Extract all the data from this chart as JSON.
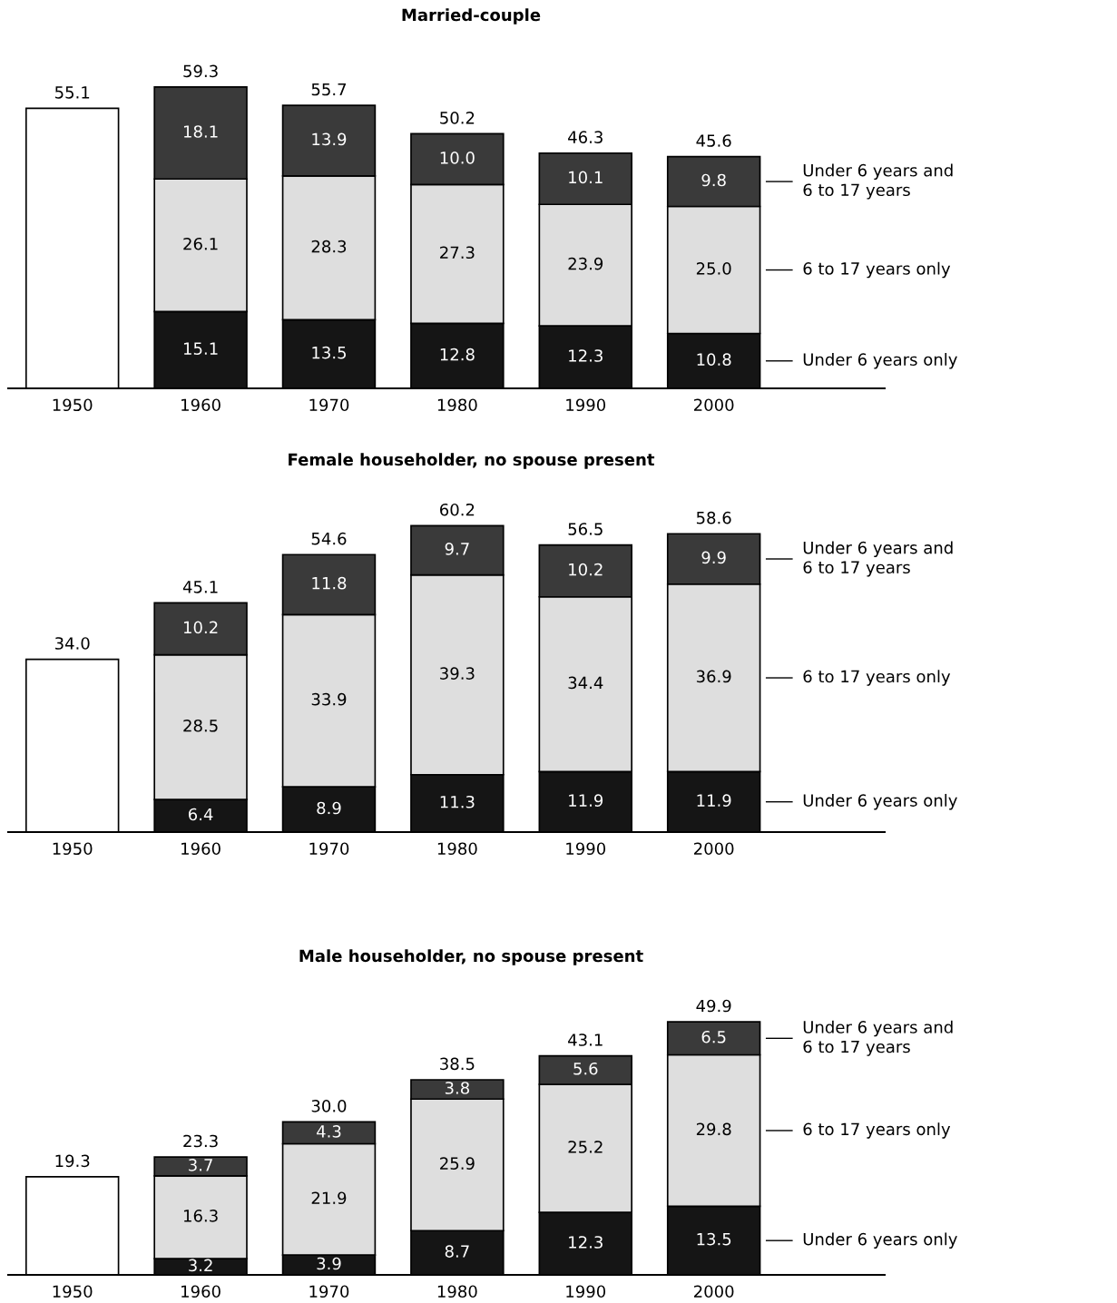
{
  "chart_data": [
    {
      "type": "bar",
      "title": "Married-couple",
      "stacked": true,
      "legend": "right",
      "data_labels": true,
      "categories": [
        "1950",
        "1960",
        "1970",
        "1980",
        "1990",
        "2000"
      ],
      "series": [
        {
          "color": "#ffffff",
          "values": [
            55.1,
            null,
            null,
            null,
            null,
            null
          ],
          "value_labels": [
            null,
            null,
            null,
            null,
            null,
            null
          ]
        },
        {
          "name": "Under 6 years only",
          "color": "#151515",
          "values": [
            null,
            15.1,
            13.5,
            12.8,
            12.3,
            10.8
          ]
        },
        {
          "name": "6 to 17 years only",
          "color": "#dedede",
          "values": [
            null,
            26.1,
            28.3,
            27.3,
            23.9,
            25.0
          ],
          "value_labels": [
            null,
            "26.1",
            "28.3",
            "27.3",
            "23.9",
            "25.0"
          ]
        },
        {
          "name": "Under 6 years and\n6 to 17 years",
          "color": "#3a3a3a",
          "values": [
            null,
            18.1,
            13.9,
            10.0,
            10.1,
            9.8
          ],
          "value_labels": [
            null,
            "18.1",
            "13.9",
            "10.0",
            "10.1",
            "9.8"
          ]
        }
      ],
      "totals": [
        "55.1",
        "59.3",
        "55.7",
        "50.2",
        "46.3",
        "45.6"
      ]
    },
    {
      "type": "bar",
      "title": "Female householder, no spouse present",
      "stacked": true,
      "legend": "right",
      "data_labels": true,
      "categories": [
        "1950",
        "1960",
        "1970",
        "1980",
        "1990",
        "2000"
      ],
      "series": [
        {
          "color": "#ffffff",
          "values": [
            34.0,
            null,
            null,
            null,
            null,
            null
          ],
          "value_labels": [
            null,
            null,
            null,
            null,
            null,
            null
          ]
        },
        {
          "name": "Under 6 years only",
          "color": "#151515",
          "values": [
            null,
            6.4,
            8.9,
            11.3,
            11.9,
            11.9
          ]
        },
        {
          "name": "6 to 17 years only",
          "color": "#dedede",
          "values": [
            null,
            28.5,
            33.9,
            39.3,
            34.4,
            36.9
          ]
        },
        {
          "name": "Under 6 years and\n6 to 17 years",
          "color": "#3a3a3a",
          "values": [
            null,
            10.2,
            11.8,
            9.7,
            10.2,
            9.9
          ]
        }
      ],
      "totals": [
        "34.0",
        "45.1",
        "54.6",
        "60.2",
        "56.5",
        "58.6"
      ]
    },
    {
      "type": "bar",
      "title": "Male householder, no spouse present",
      "stacked": true,
      "legend": "right",
      "data_labels": true,
      "categories": [
        "1950",
        "1960",
        "1970",
        "1980",
        "1990",
        "2000"
      ],
      "series": [
        {
          "color": "#ffffff",
          "values": [
            19.3,
            null,
            null,
            null,
            null,
            null
          ],
          "value_labels": [
            null,
            null,
            null,
            null,
            null,
            null
          ]
        },
        {
          "name": "Under 6 years only",
          "color": "#151515",
          "values": [
            null,
            3.2,
            3.9,
            8.7,
            12.3,
            13.5
          ]
        },
        {
          "name": "6 to 17 years only",
          "color": "#dedede",
          "values": [
            null,
            16.3,
            21.9,
            25.9,
            25.2,
            29.8
          ]
        },
        {
          "name": "Under 6 years and\n6 to 17 years",
          "color": "#3a3a3a",
          "values": [
            null,
            3.7,
            4.3,
            3.8,
            5.6,
            6.5
          ]
        }
      ],
      "totals": [
        "19.3",
        "23.3",
        "30.0",
        "38.5",
        "43.1",
        "49.9"
      ]
    }
  ]
}
